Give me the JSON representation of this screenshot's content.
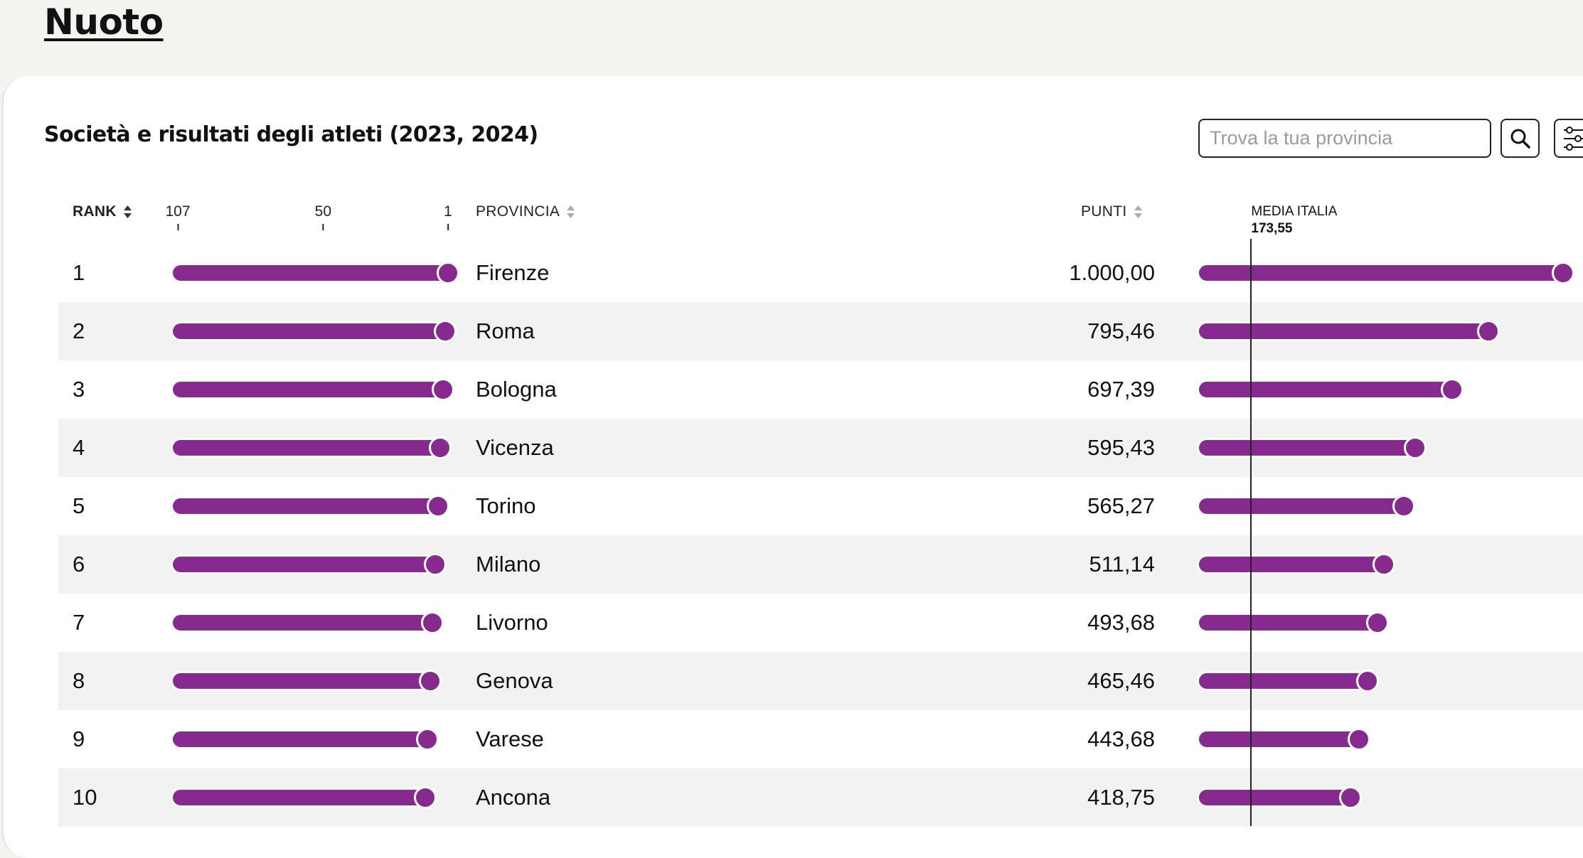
{
  "page": {
    "title": "Nuoto"
  },
  "card": {
    "title": "Società e risultati degli atleti (2023, 2024)"
  },
  "search": {
    "placeholder": "Trova la tua provincia",
    "button_icon": "search-icon",
    "filter_icon": "sliders-icon"
  },
  "table": {
    "headers": {
      "rank": "RANK",
      "provincia": "PROVINCIA",
      "punti": "PUNTI"
    },
    "rank_scale": {
      "ticks": [
        "107",
        "50",
        "1"
      ],
      "max_rank": 107,
      "min_rank": 1
    },
    "average": {
      "label": "MEDIA ITALIA",
      "value_text": "173,55",
      "value": 173.55
    },
    "points_max": 1000,
    "accent_color": "#862a8f",
    "rows": [
      {
        "rank": "1",
        "rank_value": 1,
        "provincia": "Firenze",
        "punti": "1.000,00",
        "points_value": 1000.0
      },
      {
        "rank": "2",
        "rank_value": 2,
        "provincia": "Roma",
        "punti": "795,46",
        "points_value": 795.46
      },
      {
        "rank": "3",
        "rank_value": 3,
        "provincia": "Bologna",
        "punti": "697,39",
        "points_value": 697.39
      },
      {
        "rank": "4",
        "rank_value": 4,
        "provincia": "Vicenza",
        "punti": "595,43",
        "points_value": 595.43
      },
      {
        "rank": "5",
        "rank_value": 5,
        "provincia": "Torino",
        "punti": "565,27",
        "points_value": 565.27
      },
      {
        "rank": "6",
        "rank_value": 6,
        "provincia": "Milano",
        "punti": "511,14",
        "points_value": 511.14
      },
      {
        "rank": "7",
        "rank_value": 7,
        "provincia": "Livorno",
        "punti": "493,68",
        "points_value": 493.68
      },
      {
        "rank": "8",
        "rank_value": 8,
        "provincia": "Genova",
        "punti": "465,46",
        "points_value": 465.46
      },
      {
        "rank": "9",
        "rank_value": 9,
        "provincia": "Varese",
        "punti": "443,68",
        "points_value": 443.68
      },
      {
        "rank": "10",
        "rank_value": 10,
        "provincia": "Ancona",
        "punti": "418,75",
        "points_value": 418.75
      }
    ]
  }
}
